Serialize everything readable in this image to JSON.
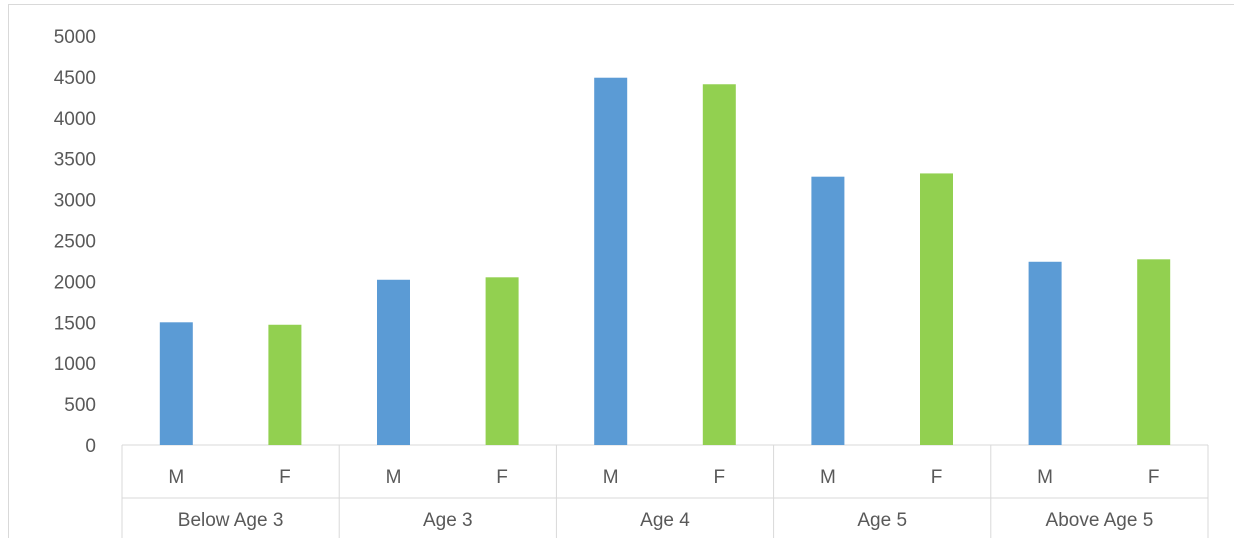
{
  "chart_data": {
    "type": "bar",
    "title": "",
    "xlabel": "",
    "ylabel": "",
    "ylim": [
      0,
      5000
    ],
    "yticks": [
      0,
      500,
      1000,
      1500,
      2000,
      2500,
      3000,
      3500,
      4000,
      4500,
      5000
    ],
    "grid": false,
    "legend": "none",
    "groups": [
      {
        "label": "Below Age 3",
        "bars": [
          {
            "label": "M",
            "value": 1500
          },
          {
            "label": "F",
            "value": 1470
          }
        ]
      },
      {
        "label": "Age 3",
        "bars": [
          {
            "label": "M",
            "value": 2020
          },
          {
            "label": "F",
            "value": 2050
          }
        ]
      },
      {
        "label": "Age 4",
        "bars": [
          {
            "label": "M",
            "value": 4490
          },
          {
            "label": "F",
            "value": 4410
          }
        ]
      },
      {
        "label": "Age 5",
        "bars": [
          {
            "label": "M",
            "value": 3280
          },
          {
            "label": "F",
            "value": 3320
          }
        ]
      },
      {
        "label": "Above Age 5",
        "bars": [
          {
            "label": "M",
            "value": 2240
          },
          {
            "label": "F",
            "value": 2270
          }
        ]
      }
    ],
    "colors": {
      "M": "#5b9bd5",
      "F": "#92d050",
      "axis": "#d9d9d9",
      "text": "#595959"
    }
  }
}
